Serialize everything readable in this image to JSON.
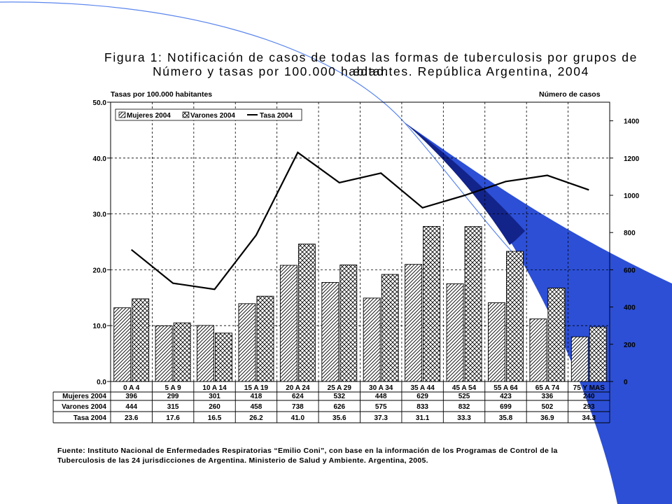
{
  "slide": {
    "title_line1": "Figura 1: Notificación de casos de todas las formas de tuberculosis por grupos de edad.",
    "title_line2": "Número y tasas por 100.000 habitantes. República Argentina,  2004",
    "left_axis_label": "Tasas por 100.000 habitantes",
    "right_axis_label": "Número de casos",
    "source_line1": "Fuente: Instituto Nacional de Enfermedades Respiratorias “Emilio Coni”, con base en la información de los Programas de Control de la",
    "source_line2": "Tuberculosis de las 24 jurisdicciones de Argentina. Ministerio de Salud y Ambiente. Argentina, 2005.",
    "deco_colors": {
      "band": "#2c4fd6",
      "band_dark": "#12238a",
      "line": "#5b86ee"
    }
  },
  "chart_data": {
    "type": "bar",
    "title": "Figura 1: Notificación de casos de todas las formas de tuberculosis por grupos de edad. Número y tasas por 100.000 habitantes. República Argentina,  2004",
    "categories": [
      "0 A 4",
      "5 A 9",
      "10 A 14",
      "15 A 19",
      "20 A 24",
      "25 A 29",
      "30 A 34",
      "35 A 44",
      "45 A 54",
      "55 A 64",
      "65 A 74",
      "75 Y MAS"
    ],
    "series": [
      {
        "name": "Mujeres 2004",
        "type": "bar",
        "axis": "right",
        "pattern": "diagonal",
        "values": [
          396,
          299,
          301,
          418,
          624,
          532,
          448,
          629,
          525,
          423,
          336,
          240
        ]
      },
      {
        "name": "Varones 2004",
        "type": "bar",
        "axis": "right",
        "pattern": "crosshatch",
        "values": [
          444,
          315,
          260,
          458,
          738,
          626,
          575,
          833,
          832,
          699,
          502,
          293
        ]
      },
      {
        "name": "Tasa 2004",
        "type": "line",
        "axis": "left",
        "values": [
          23.6,
          17.6,
          16.5,
          26.2,
          41.0,
          35.6,
          37.3,
          31.1,
          33.3,
          35.8,
          36.9,
          34.3
        ]
      }
    ],
    "row_display": {
      "Mujeres 2004": [
        "396",
        "299",
        "301",
        "418",
        "624",
        "532",
        "448",
        "629",
        "525",
        "423",
        "336",
        "240"
      ],
      "Varones 2004": [
        "444",
        "315",
        "260",
        "458",
        "738",
        "626",
        "575",
        "833",
        "832",
        "699",
        "502",
        "293"
      ],
      "Tasa 2004": [
        "23.6",
        "17.6",
        "16.5",
        "26.2",
        "41.0",
        "35.6",
        "37.3",
        "31.1",
        "33.3",
        "35.8",
        "36.9",
        "34.3"
      ]
    },
    "y_left": {
      "label": "Tasas por 100.000 habitantes",
      "lim": [
        0,
        50
      ],
      "ticks": [
        "0.0",
        "10.0",
        "20.0",
        "30.0",
        "40.0",
        "50.0"
      ]
    },
    "y_right": {
      "label": "Número de casos",
      "lim": [
        0,
        1500
      ],
      "ticks": [
        "0",
        "200",
        "400",
        "600",
        "800",
        "1000",
        "1200",
        "1400"
      ]
    },
    "grid": true,
    "legend": "top-left"
  }
}
